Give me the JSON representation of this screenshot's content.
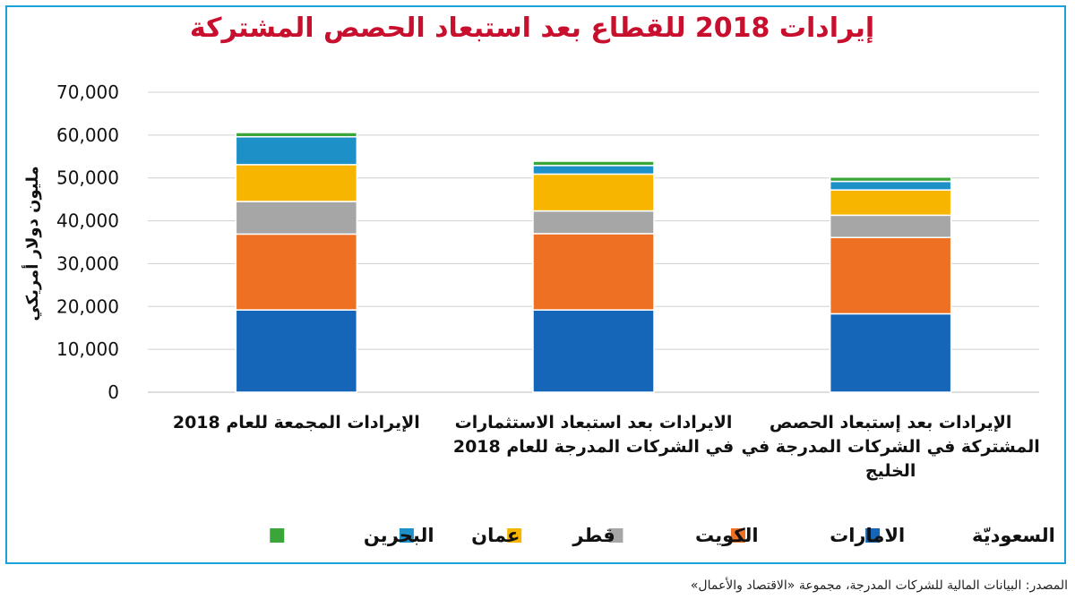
{
  "chart_data": {
    "type": "bar",
    "stacked": true,
    "title": "إيرادات 2018 للقطاع بعد استبعاد الحصص المشتركة",
    "ylabel": "مليون دولار أمريكي",
    "xlabel": "",
    "ylim": [
      0,
      70000
    ],
    "yticks": [
      "0",
      "10,000",
      "20,000",
      "30,000",
      "40,000",
      "50,000",
      "60,000",
      "70,000"
    ],
    "grid": true,
    "legend_position": "bottom",
    "categories": [
      "الإيرادات المجمعة للعام 2018",
      "الايرادات بعد استبعاد الاستثمارات في الشركات المدرجة للعام 2018",
      "الإيرادات بعد إستبعاد الحصص المشتركة في الشركات المدرجة في الخليج"
    ],
    "series": [
      {
        "name": "السعوديّة",
        "color": "#1565b8",
        "values": [
          19200,
          19200,
          18300
        ]
      },
      {
        "name": "الامارات",
        "color": "#ee7022",
        "values": [
          17700,
          17800,
          17800
        ]
      },
      {
        "name": "الكويت",
        "color": "#a6a6a6",
        "values": [
          7600,
          5300,
          5200
        ]
      },
      {
        "name": "قطر",
        "color": "#f7b500",
        "values": [
          8600,
          8600,
          5900
        ]
      },
      {
        "name": "عمان",
        "color": "#1e90c8",
        "values": [
          6500,
          2000,
          2000
        ]
      },
      {
        "name": "البحرين",
        "color": "#3aa63a",
        "values": [
          1000,
          1000,
          1000
        ]
      }
    ]
  },
  "source_text": "المصدر: البيانات المالية للشركات المدرجة، مجموعة «الاقتصاد والأعمال»"
}
